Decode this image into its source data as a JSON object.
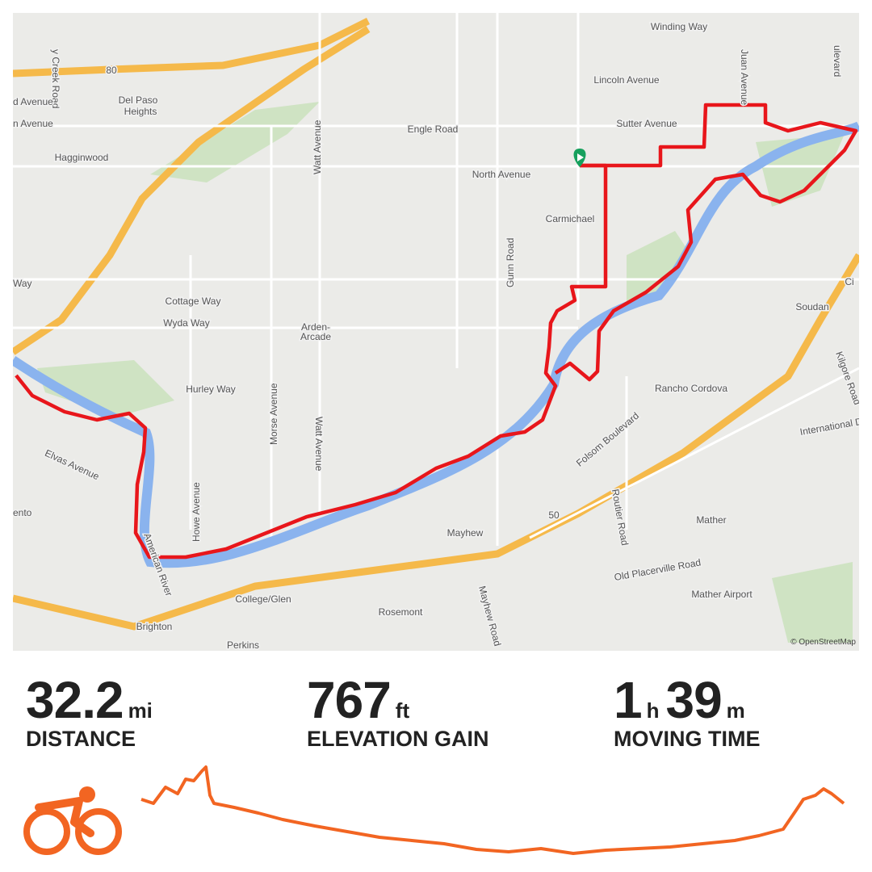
{
  "map": {
    "labels": [
      "Winding Way",
      "Juan Avenue",
      "ulevard",
      "y Creek Road",
      "d Avenue",
      "n Avenue",
      "Del Paso",
      "Heights",
      "Lincoln Avenue",
      "Sutter Avenue",
      "Engle Road",
      "North Avenue",
      "Hagginwood",
      "Watt Avenue",
      "Carmichael",
      "Gunn Road",
      "Way",
      "Cottage Way",
      "Wyda Way",
      "Arden-",
      "Arcade",
      "Hurley Way",
      "Morse Avenue",
      "Watt Avenue",
      "Rancho Cordova",
      "Soudan",
      "Kilgore Road",
      "International Drive",
      "Elvas Avenue",
      "Folsom Boulevard",
      "Routier Road",
      "American River",
      "ento",
      "Howe Avenue",
      "Mayhew",
      "Mayhew Road",
      "Mather",
      "Old Placerville Road",
      "Mather Airport",
      "College/Glen",
      "Rosemont",
      "Brighton",
      "Perkins",
      "80",
      "50",
      "Ci"
    ],
    "attribution": "© OpenStreetMap"
  },
  "stats": [
    {
      "parts": [
        {
          "value": "32.2",
          "unit": "mi"
        }
      ],
      "label": "DISTANCE"
    },
    {
      "parts": [
        {
          "value": "767",
          "unit": "ft"
        }
      ],
      "label": "ELEVATION GAIN"
    },
    {
      "parts": [
        {
          "value": "1",
          "unit": "h"
        },
        {
          "value": "39",
          "unit": "m"
        }
      ],
      "label": "MOVING TIME"
    }
  ]
}
